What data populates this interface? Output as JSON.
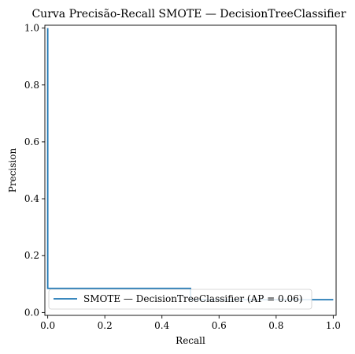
{
  "chart_data": {
    "type": "line",
    "title": "Curva Precisão-Recall SMOTE — DecisionTreeClassifier",
    "xlabel": "Recall",
    "ylabel": "Precision",
    "xlim": [
      0,
      1
    ],
    "ylim": [
      0,
      1
    ],
    "x_ticks": [
      "0.0",
      "0.2",
      "0.4",
      "0.6",
      "0.8",
      "1.0"
    ],
    "y_ticks": [
      "0.0",
      "0.2",
      "0.4",
      "0.6",
      "0.8",
      "1.0"
    ],
    "grid": false,
    "legend_position": "lower right",
    "series": [
      {
        "name": "SMOTE — DecisionTreeClassifier (AP = 0.06)",
        "color": "#1f77b4",
        "x": [
          1.0,
          0.5,
          0.5,
          0.0,
          0.0
        ],
        "y": [
          0.045,
          0.045,
          0.085,
          0.085,
          1.0
        ]
      }
    ]
  }
}
